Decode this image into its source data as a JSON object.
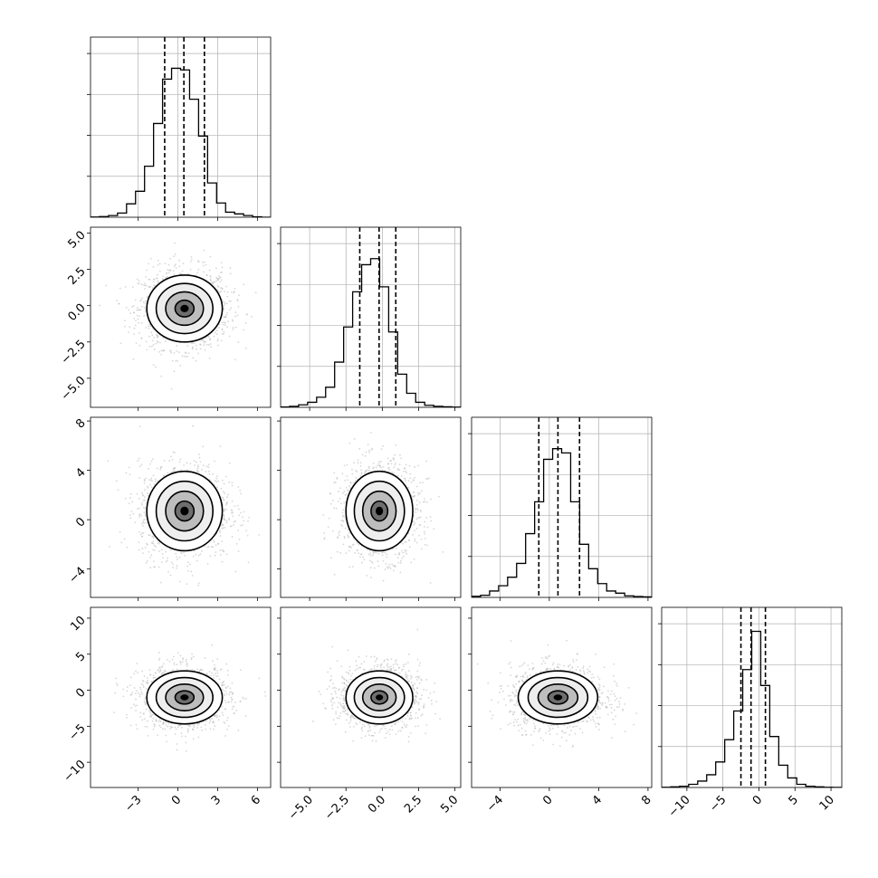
{
  "chart_data": {
    "type": "corner",
    "title": "",
    "variables": [
      {
        "range": [
          -6.6,
          7.0
        ],
        "ticks": [
          -3,
          0,
          3,
          6
        ],
        "tick_labels": [
          "−3",
          "0",
          "3",
          "6"
        ]
      },
      {
        "range": [
          -7.0,
          5.4
        ],
        "ticks": [
          -5.0,
          -2.5,
          0.0,
          2.5,
          5.0
        ],
        "tick_labels": [
          "−5.0",
          "−2.5",
          "0.0",
          "2.5",
          "5.0"
        ]
      },
      {
        "range": [
          -6.3,
          8.3
        ],
        "ticks": [
          -4,
          0,
          4,
          8
        ],
        "tick_labels": [
          "−4",
          "0",
          "4",
          "8"
        ]
      },
      {
        "range": [
          -13.5,
          11.5
        ],
        "ticks": [
          -10,
          -5,
          0,
          5,
          10
        ],
        "tick_labels": [
          "−10",
          "−5",
          "0",
          "5",
          "10"
        ]
      }
    ],
    "histograms": [
      {
        "bin_edges": [
          -6.6,
          -5.92,
          -5.24,
          -4.56,
          -3.88,
          -3.2,
          -2.52,
          -1.84,
          -1.16,
          -0.48,
          0.2,
          0.88,
          1.56,
          2.24,
          2.92,
          3.6,
          4.28,
          4.96,
          5.64,
          6.32,
          7.0
        ],
        "counts": [
          0.3,
          0.8,
          2,
          5,
          16,
          31,
          61,
          112,
          165,
          178,
          176,
          141,
          97,
          41,
          17,
          6,
          4,
          2,
          0.5,
          0
        ],
        "ymax": 198,
        "quantiles": [
          -1.0,
          0.45,
          2.0
        ]
      },
      {
        "bin_edges": [
          -7.0,
          -6.38,
          -5.76,
          -5.14,
          -4.52,
          -3.9,
          -3.28,
          -2.66,
          -2.04,
          -1.42,
          -0.8,
          -0.18,
          0.44,
          1.06,
          1.68,
          2.3,
          2.92,
          3.54,
          4.16,
          4.78,
          5.4
        ],
        "counts": [
          0.3,
          1,
          2.5,
          5,
          10,
          20,
          45,
          80,
          115,
          142,
          148,
          120,
          75,
          33,
          14,
          5,
          2,
          1,
          0.5,
          0.2
        ],
        "ymax": 165,
        "quantiles": [
          -1.55,
          -0.22,
          0.93
        ]
      },
      {
        "bin_edges": [
          -6.3,
          -5.57,
          -4.84,
          -4.11,
          -3.38,
          -2.65,
          -1.92,
          -1.19,
          -0.46,
          0.27,
          1.0,
          1.73,
          2.46,
          3.19,
          3.92,
          4.65,
          5.38,
          6.11,
          6.84,
          7.57,
          8.3
        ],
        "counts": [
          1,
          2,
          6,
          11,
          19,
          32,
          60,
          90,
          130,
          140,
          136,
          90,
          50,
          27,
          13,
          6,
          4,
          1.5,
          0.8,
          0.5
        ],
        "ymax": 156,
        "quantiles": [
          -0.85,
          0.7,
          2.45
        ]
      },
      {
        "bin_edges": [
          -13.5,
          -12.25,
          -11.0,
          -9.75,
          -8.5,
          -7.25,
          -6.0,
          -4.75,
          -3.5,
          -2.25,
          -1.0,
          0.25,
          1.5,
          2.75,
          4.0,
          5.25,
          6.5,
          7.75,
          9.0,
          10.25,
          11.5
        ],
        "counts": [
          0.3,
          1,
          2,
          5,
          10,
          20,
          40,
          75,
          120,
          185,
          245,
          160,
          80,
          35,
          15,
          5,
          2,
          1,
          0.3,
          0.1
        ],
        "ymax": 260,
        "quantiles": [
          -2.5,
          -1.1,
          0.9
        ]
      }
    ],
    "means": [
      0.5,
      -0.2,
      0.7,
      -1.0
    ],
    "sigmas": [
      1.55,
      1.25,
      1.75,
      2.0
    ],
    "contour_levels_sigma": [
      0.5,
      1.0,
      1.5,
      2.0
    ],
    "scatter_points_per_panel": 1400,
    "grid": true,
    "colors": {
      "line": "#000000",
      "grid": "#b0b0b0",
      "points": "#bdbdbd",
      "hist2d_dark": "#000000",
      "background": "#ffffff"
    }
  }
}
